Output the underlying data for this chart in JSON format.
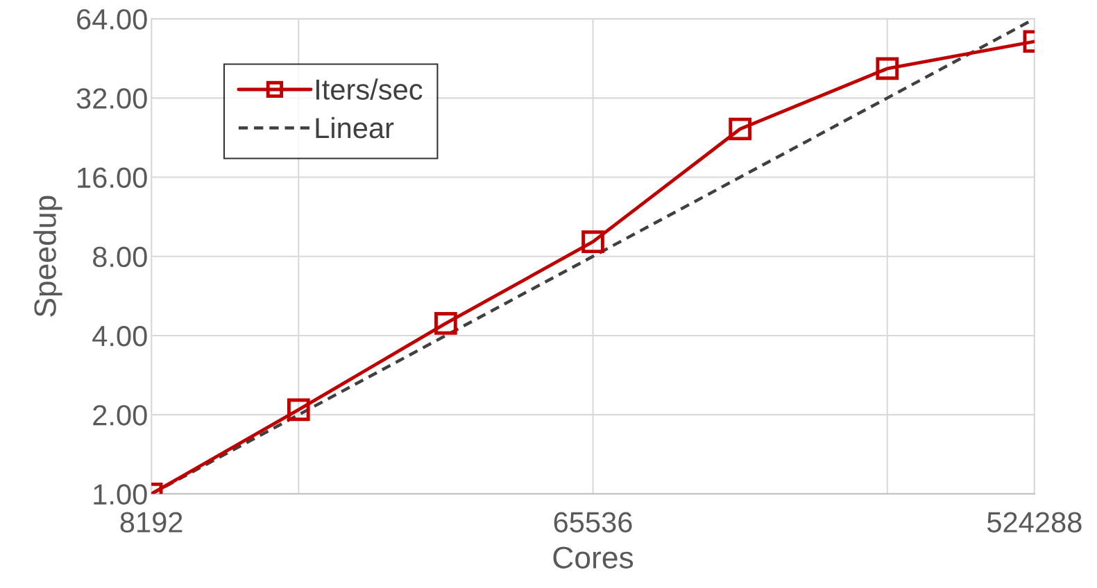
{
  "chart_data": {
    "type": "line",
    "xlabel": "Cores",
    "ylabel": "Speedup",
    "x": [
      8192,
      16384,
      32768,
      65536,
      131072,
      262144,
      524288
    ],
    "series": [
      {
        "name": "Iters/sec",
        "color": "#c00000",
        "values": [
          1.0,
          2.09,
          4.45,
          9.09,
          24.4,
          41.4,
          52.5
        ],
        "marker": "square",
        "line_style": "solid"
      },
      {
        "name": "Linear",
        "color": "#404040",
        "values": [
          1,
          2,
          4,
          8,
          16,
          32,
          64
        ],
        "marker": "none",
        "line_style": "dashed"
      }
    ],
    "log": "xy",
    "xlim": [
      8192,
      524288
    ],
    "ylim": [
      1,
      64
    ],
    "xticks": [
      8192,
      {
        "value": 16384,
        "label": null
      },
      65536,
      {
        "value": 262144,
        "label": null
      },
      524288
    ],
    "yticks": [
      {
        "value": 1,
        "label": "1.00"
      },
      {
        "value": 2,
        "label": "2.00"
      },
      {
        "value": 4,
        "label": "4.00"
      },
      {
        "value": 8,
        "label": "8.00"
      },
      {
        "value": 16,
        "label": "16.00"
      },
      {
        "value": 32,
        "label": "32.00"
      },
      {
        "value": 64,
        "label": "64.00"
      }
    ],
    "grid": true,
    "legend": "top left"
  }
}
